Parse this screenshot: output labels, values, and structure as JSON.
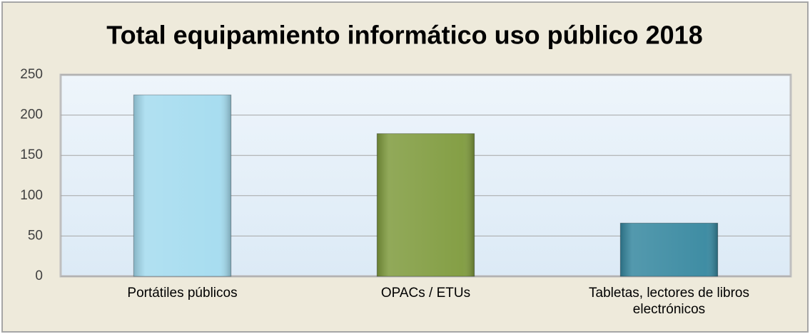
{
  "chart_data": {
    "type": "bar",
    "title": "Total equipamiento informático uso público 2018",
    "categories": [
      "Portátiles públicos",
      "OPACs / ETUs",
      "Tabletas, lectores de libros electrónicos"
    ],
    "values": [
      225,
      177,
      66
    ],
    "colors": [
      "#a3dbef",
      "#7e9a3c",
      "#35879f"
    ],
    "ylim": [
      0,
      250
    ],
    "yticks": [
      0,
      50,
      100,
      150,
      200,
      250
    ],
    "grid": true
  }
}
